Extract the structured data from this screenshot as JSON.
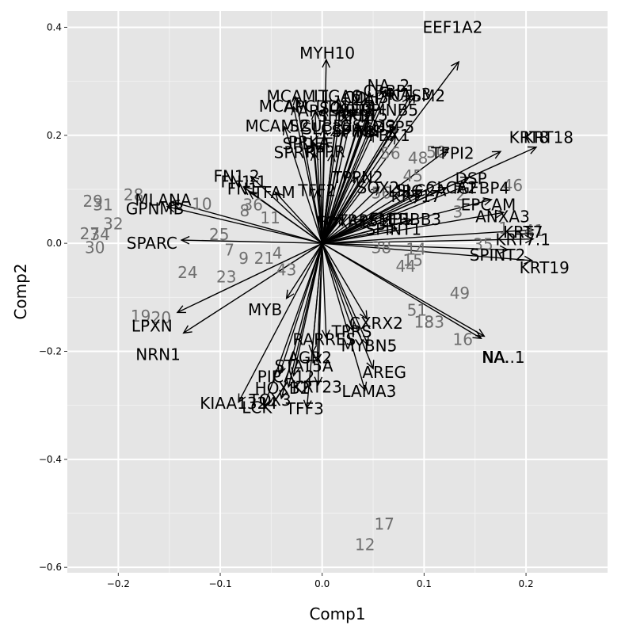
{
  "chart_data": {
    "type": "scatter",
    "title": "",
    "xlabel": "Comp1",
    "ylabel": "Comp2",
    "xlim": [
      -0.25,
      0.28
    ],
    "ylim": [
      -0.61,
      0.43
    ],
    "x_ticks": [
      -0.2,
      -0.1,
      0.0,
      0.1,
      0.2
    ],
    "x_tick_labels": [
      "−0.2",
      "−0.1",
      "0.0",
      "0.1",
      "0.2"
    ],
    "y_ticks": [
      -0.6,
      -0.4,
      -0.2,
      0.0,
      0.2,
      0.4
    ],
    "y_tick_labels": [
      "−0.6",
      "−0.4",
      "−0.2",
      "0.0",
      "0.2",
      "0.4"
    ],
    "grid": true,
    "colors": {
      "panel": "#e5e5e5",
      "grid_major": "#ffffff",
      "grid_minor": "#f2f2f2",
      "arrow": "#000000",
      "observation": "#6f6f6f",
      "variable": "#000000"
    },
    "observations": [
      {
        "label": "29",
        "x": -0.225,
        "y": 0.078
      },
      {
        "label": "31",
        "x": -0.215,
        "y": 0.071
      },
      {
        "label": "28",
        "x": -0.185,
        "y": 0.09
      },
      {
        "label": "32",
        "x": -0.205,
        "y": 0.036
      },
      {
        "label": "27",
        "x": -0.228,
        "y": 0.018
      },
      {
        "label": "34",
        "x": -0.218,
        "y": 0.016
      },
      {
        "label": "30",
        "x": -0.223,
        "y": -0.008
      },
      {
        "label": "10",
        "x": -0.118,
        "y": 0.073
      },
      {
        "label": "36",
        "x": -0.068,
        "y": 0.071
      },
      {
        "label": "8",
        "x": -0.076,
        "y": 0.06
      },
      {
        "label": "11",
        "x": -0.051,
        "y": 0.047
      },
      {
        "label": "25",
        "x": -0.101,
        "y": 0.016
      },
      {
        "label": "7",
        "x": -0.091,
        "y": -0.012
      },
      {
        "label": "9",
        "x": -0.077,
        "y": -0.028
      },
      {
        "label": "21",
        "x": -0.057,
        "y": -0.028
      },
      {
        "label": "4",
        "x": -0.044,
        "y": -0.018
      },
      {
        "label": "43",
        "x": -0.035,
        "y": -0.049
      },
      {
        "label": "24",
        "x": -0.132,
        "y": -0.054
      },
      {
        "label": "23",
        "x": -0.094,
        "y": -0.062
      },
      {
        "label": "19",
        "x": -0.178,
        "y": -0.135
      },
      {
        "label": "20",
        "x": -0.158,
        "y": -0.138
      },
      {
        "label": "50",
        "x": 0.112,
        "y": 0.169
      },
      {
        "label": "48",
        "x": 0.094,
        "y": 0.158
      },
      {
        "label": "56",
        "x": 0.067,
        "y": 0.167
      },
      {
        "label": "45",
        "x": 0.089,
        "y": 0.125
      },
      {
        "label": "56",
        "x": 0.058,
        "y": 0.093
      },
      {
        "label": "38",
        "x": 0.058,
        "y": -0.008
      },
      {
        "label": "14",
        "x": 0.092,
        "y": -0.011
      },
      {
        "label": "15",
        "x": 0.089,
        "y": -0.031
      },
      {
        "label": "44",
        "x": 0.082,
        "y": -0.042
      },
      {
        "label": "49",
        "x": 0.135,
        "y": -0.092
      },
      {
        "label": "51",
        "x": 0.093,
        "y": -0.124
      },
      {
        "label": "18",
        "x": 0.1,
        "y": -0.146
      },
      {
        "label": "33",
        "x": 0.11,
        "y": -0.146
      },
      {
        "label": "16",
        "x": 0.138,
        "y": -0.178
      },
      {
        "label": "17",
        "x": 0.061,
        "y": -0.52
      },
      {
        "label": "12",
        "x": 0.042,
        "y": -0.558
      },
      {
        "label": "2",
        "x": 0.136,
        "y": 0.09
      },
      {
        "label": "46",
        "x": 0.187,
        "y": 0.107
      },
      {
        "label": "3",
        "x": 0.133,
        "y": 0.058
      },
      {
        "label": "1",
        "x": 0.178,
        "y": 0.028
      },
      {
        "label": "41",
        "x": 0.208,
        "y": 0.024
      },
      {
        "label": "35",
        "x": 0.158,
        "y": -0.002
      }
    ],
    "variables": [
      {
        "label": "EEF1A2",
        "x": 0.134,
        "y": 0.336,
        "lx": 0.128,
        "ly": 0.4
      },
      {
        "label": "MYH10",
        "x": 0.004,
        "y": 0.34,
        "lx": 0.005,
        "ly": 0.352
      },
      {
        "label": "NA..2",
        "x": 0.066,
        "y": 0.287,
        "lx": 0.065,
        "ly": 0.292
      },
      {
        "label": "CRBP1",
        "x": 0.062,
        "y": 0.284,
        "lx": 0.066,
        "ly": 0.282
      },
      {
        "label": "NA..3",
        "x": 0.086,
        "y": 0.271,
        "lx": 0.086,
        "ly": 0.276
      },
      {
        "label": "CTSM2",
        "x": 0.091,
        "y": 0.275,
        "lx": 0.094,
        "ly": 0.273
      },
      {
        "label": "MCAM.1",
        "x": -0.026,
        "y": 0.271,
        "lx": -0.023,
        "ly": 0.272
      },
      {
        "label": "ITGA6",
        "x": 0.016,
        "y": 0.269,
        "lx": 0.015,
        "ly": 0.272
      },
      {
        "label": "CDH3",
        "x": 0.049,
        "y": 0.264,
        "lx": 0.043,
        "ly": 0.27
      },
      {
        "label": "MAPT",
        "x": 0.043,
        "y": 0.268,
        "lx": 0.049,
        "ly": 0.268
      },
      {
        "label": "MCAM",
        "x": -0.028,
        "y": 0.253,
        "lx": -0.038,
        "ly": 0.254
      },
      {
        "label": "APCDD1",
        "x": 0.002,
        "y": 0.25,
        "lx": -0.005,
        "ly": 0.253
      },
      {
        "label": "SOX10",
        "x": 0.018,
        "y": 0.247,
        "lx": 0.023,
        "ly": 0.25
      },
      {
        "label": "ART3",
        "x": 0.03,
        "y": 0.245,
        "lx": 0.032,
        "ly": 0.246
      },
      {
        "label": "SERPINB5",
        "x": 0.048,
        "y": 0.245,
        "lx": 0.056,
        "ly": 0.247
      },
      {
        "label": "AR",
        "x": -0.007,
        "y": 0.244,
        "lx": -0.013,
        "ly": 0.245
      },
      {
        "label": "SFRP1",
        "x": 0.023,
        "y": 0.237,
        "lx": 0.02,
        "ly": 0.236
      },
      {
        "label": "KRT5",
        "x": 0.045,
        "y": 0.235,
        "lx": 0.045,
        "ly": 0.237
      },
      {
        "label": "MCAM.2",
        "x": -0.037,
        "y": 0.216,
        "lx": -0.044,
        "ly": 0.217
      },
      {
        "label": "SCUBE2",
        "x": 0.002,
        "y": 0.214,
        "lx": -0.001,
        "ly": 0.217
      },
      {
        "label": "SLC39A6",
        "x": 0.013,
        "y": 0.212,
        "lx": 0.015,
        "ly": 0.212
      },
      {
        "label": "GSTM3",
        "x": 0.036,
        "y": 0.219,
        "lx": 0.045,
        "ly": 0.217
      },
      {
        "label": "SPINK",
        "x": 0.021,
        "y": 0.21,
        "lx": 0.032,
        "ly": 0.208
      },
      {
        "label": "DSP5",
        "x": 0.072,
        "y": 0.215,
        "lx": 0.07,
        "ly": 0.215
      },
      {
        "label": "FBP1",
        "x": 0.05,
        "y": 0.203,
        "lx": 0.052,
        "ly": 0.206
      },
      {
        "label": "PBX1",
        "x": 0.072,
        "y": 0.199,
        "lx": 0.066,
        "ly": 0.2
      },
      {
        "label": "SPDEF",
        "x": -0.002,
        "y": 0.18,
        "lx": -0.014,
        "ly": 0.184
      },
      {
        "label": "PRKA",
        "x": -0.008,
        "y": 0.185,
        "lx": -0.013,
        "ly": 0.187
      },
      {
        "label": "KRT18",
        "x": 0.21,
        "y": 0.178,
        "lx": 0.222,
        "ly": 0.196
      },
      {
        "label": "KRT8",
        "x": 0.175,
        "y": 0.17,
        "lx": 0.203,
        "ly": 0.196
      },
      {
        "label": "SPRR",
        "x": -0.008,
        "y": 0.168,
        "lx": -0.027,
        "ly": 0.168
      },
      {
        "label": "PPPR",
        "x": 0.01,
        "y": 0.166,
        "lx": 0.003,
        "ly": 0.17
      },
      {
        "label": "TFPI2",
        "x": 0.124,
        "y": 0.175,
        "lx": 0.128,
        "ly": 0.167
      },
      {
        "label": "FN1.2",
        "x": -0.07,
        "y": 0.124,
        "lx": -0.084,
        "ly": 0.124
      },
      {
        "label": "FN1.1",
        "x": -0.077,
        "y": 0.104,
        "lx": -0.077,
        "ly": 0.114
      },
      {
        "label": "FN1",
        "x": -0.072,
        "y": 0.096,
        "lx": -0.078,
        "ly": 0.101
      },
      {
        "label": "TFAM",
        "x": -0.046,
        "y": 0.095,
        "lx": -0.047,
        "ly": 0.094
      },
      {
        "label": "TFF2",
        "x": -0.005,
        "y": 0.098,
        "lx": -0.005,
        "ly": 0.098
      },
      {
        "label": "TPPN2",
        "x": 0.035,
        "y": 0.123,
        "lx": 0.035,
        "ly": 0.122
      },
      {
        "label": "SOX2",
        "x": 0.056,
        "y": 0.104,
        "lx": 0.055,
        "ly": 0.103
      },
      {
        "label": "LIPG",
        "x": 0.085,
        "y": 0.098,
        "lx": 0.082,
        "ly": 0.096
      },
      {
        "label": "SLC2A",
        "x": 0.098,
        "y": 0.099,
        "lx": 0.097,
        "ly": 0.098
      },
      {
        "label": "DSP",
        "x": 0.144,
        "y": 0.122,
        "lx": 0.146,
        "ly": 0.12
      },
      {
        "label": "CLCA2",
        "x": 0.122,
        "y": 0.103,
        "lx": 0.127,
        "ly": 0.103
      },
      {
        "label": "IGFBP4",
        "x": 0.139,
        "y": 0.105,
        "lx": 0.156,
        "ly": 0.102
      },
      {
        "label": "MLANA",
        "x": -0.148,
        "y": 0.077,
        "lx": -0.156,
        "ly": 0.08
      },
      {
        "label": "GPNMB",
        "x": -0.152,
        "y": 0.068,
        "lx": -0.164,
        "ly": 0.064
      },
      {
        "label": "KRT17",
        "x": 0.096,
        "y": 0.087,
        "lx": 0.092,
        "ly": 0.087
      },
      {
        "label": "EPCAM",
        "x": 0.166,
        "y": 0.081,
        "lx": 0.163,
        "ly": 0.071
      },
      {
        "label": "ANXA3",
        "x": 0.178,
        "y": 0.057,
        "lx": 0.177,
        "ly": 0.049
      },
      {
        "label": "FOXA1",
        "x": 0.018,
        "y": 0.051,
        "lx": 0.02,
        "ly": 0.039
      },
      {
        "label": "TRPS1",
        "x": 0.04,
        "y": 0.045,
        "lx": 0.04,
        "ly": 0.042
      },
      {
        "label": "FMP1",
        "x": 0.066,
        "y": 0.045,
        "lx": 0.067,
        "ly": 0.045
      },
      {
        "label": "ERBB3",
        "x": 0.088,
        "y": 0.044,
        "lx": 0.091,
        "ly": 0.044
      },
      {
        "label": "SPINT1",
        "x": 0.073,
        "y": 0.028,
        "lx": 0.07,
        "ly": 0.026
      },
      {
        "label": "KRT7",
        "x": 0.207,
        "y": 0.025,
        "lx": 0.197,
        "ly": 0.021
      },
      {
        "label": "KRT7.1",
        "x": 0.207,
        "y": 0.008,
        "lx": 0.197,
        "ly": 0.007
      },
      {
        "label": "SPARC",
        "x": -0.138,
        "y": 0.006,
        "lx": -0.167,
        "ly": 0.0
      },
      {
        "label": "SPINT2",
        "x": 0.182,
        "y": -0.012,
        "lx": 0.172,
        "ly": -0.022
      },
      {
        "label": "KRT19",
        "x": 0.206,
        "y": -0.032,
        "lx": 0.218,
        "ly": -0.045
      },
      {
        "label": "MYB",
        "x": -0.035,
        "y": -0.102,
        "lx": -0.056,
        "ly": -0.123
      },
      {
        "label": "LPXN",
        "x": -0.142,
        "y": -0.128,
        "lx": -0.167,
        "ly": -0.153
      },
      {
        "label": "NRN1",
        "x": -0.136,
        "y": -0.166,
        "lx": -0.161,
        "ly": -0.206
      },
      {
        "label": "CXRX2",
        "x": 0.044,
        "y": -0.14,
        "lx": 0.053,
        "ly": -0.148
      },
      {
        "label": "TPRS",
        "x": 0.03,
        "y": -0.161,
        "lx": 0.029,
        "ly": -0.163
      },
      {
        "label": "RARRES",
        "x": 0.004,
        "y": -0.175,
        "lx": 0.002,
        "ly": -0.178
      },
      {
        "label": "NA.",
        "x": 0.159,
        "y": -0.172,
        "lx": 0.17,
        "ly": -0.211
      },
      {
        "label": "NA..1",
        "x": 0.156,
        "y": -0.176,
        "lx": 0.178,
        "ly": -0.211
      },
      {
        "label": "MYBN5",
        "x": 0.045,
        "y": -0.188,
        "lx": 0.046,
        "ly": -0.19
      },
      {
        "label": "AGR2",
        "x": -0.01,
        "y": -0.203,
        "lx": -0.012,
        "ly": -0.212
      },
      {
        "label": "STAT5A",
        "x": -0.005,
        "y": -0.219,
        "lx": -0.018,
        "ly": -0.227
      },
      {
        "label": "AREG",
        "x": 0.05,
        "y": -0.232,
        "lx": 0.061,
        "ly": -0.239
      },
      {
        "label": "PIP",
        "x": -0.042,
        "y": -0.243,
        "lx": -0.052,
        "ly": -0.247
      },
      {
        "label": "CA12",
        "x": -0.028,
        "y": -0.245,
        "lx": -0.028,
        "ly": -0.247
      },
      {
        "label": "HOXB2",
        "x": -0.033,
        "y": -0.266,
        "lx": -0.039,
        "ly": -0.268
      },
      {
        "label": "KRT23",
        "x": -0.004,
        "y": -0.262,
        "lx": -0.005,
        "ly": -0.266
      },
      {
        "label": "LAMA3",
        "x": 0.042,
        "y": -0.272,
        "lx": 0.046,
        "ly": -0.274
      },
      {
        "label": "TOX3",
        "x": -0.04,
        "y": -0.287,
        "lx": -0.051,
        "ly": -0.29
      },
      {
        "label": "KIAA1324",
        "x": -0.082,
        "y": -0.294,
        "lx": -0.082,
        "ly": -0.296
      },
      {
        "label": "LCK",
        "x": -0.057,
        "y": -0.302,
        "lx": -0.064,
        "ly": -0.304
      },
      {
        "label": "TFF3",
        "x": -0.015,
        "y": -0.305,
        "lx": -0.017,
        "ly": -0.306
      }
    ]
  }
}
